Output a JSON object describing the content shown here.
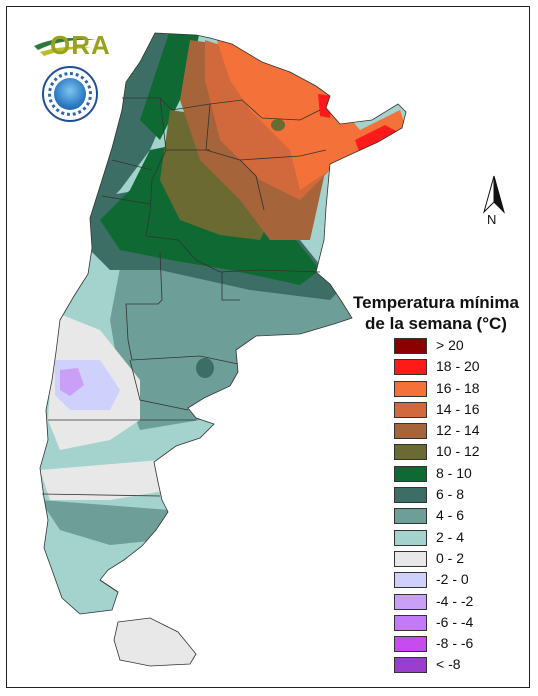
{
  "logo": {
    "text": "ORA",
    "seal_icon": "meteorological-service-seal"
  },
  "north_arrow": {
    "label": "N"
  },
  "legend": {
    "title_line1": "Temperatura mínima",
    "title_line2": "de la semana (°C)",
    "classes": [
      {
        "label": "> 20",
        "color": "#8b0000"
      },
      {
        "label": "18 - 20",
        "color": "#ff1a1a"
      },
      {
        "label": "16 - 18",
        "color": "#f4713a"
      },
      {
        "label": "14 - 16",
        "color": "#d2693c"
      },
      {
        "label": "12 - 14",
        "color": "#a5643a"
      },
      {
        "label": "10 - 12",
        "color": "#6b6a32"
      },
      {
        "label": "8 - 10",
        "color": "#0e6a32"
      },
      {
        "label": "6 - 8",
        "color": "#3c6e66"
      },
      {
        "label": "4 - 6",
        "color": "#6e9e98"
      },
      {
        "label": "2 - 4",
        "color": "#a4d2cc"
      },
      {
        "label": "0 - 2",
        "color": "#e8e8e8"
      },
      {
        "label": "-2 - 0",
        "color": "#cfd0fb"
      },
      {
        "label": "-4 - -2",
        "color": "#c99ff7"
      },
      {
        "label": "-6 - -4",
        "color": "#c27af8"
      },
      {
        "label": "-8 - -6",
        "color": "#c64cf0"
      },
      {
        "label": "< -8",
        "color": "#9b3ed0"
      }
    ]
  }
}
